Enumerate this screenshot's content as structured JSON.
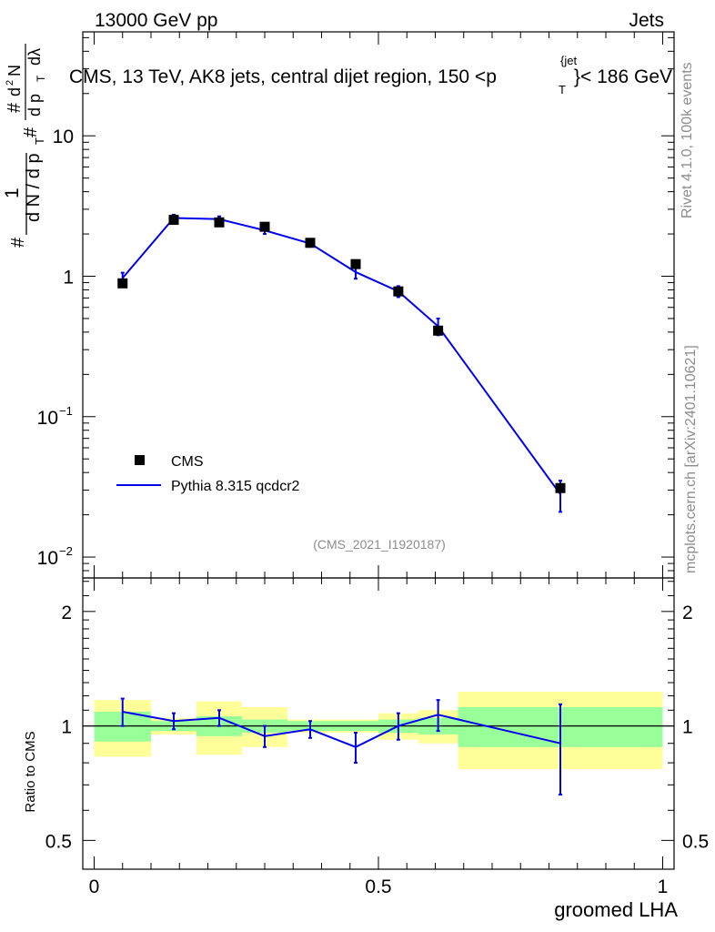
{
  "header": {
    "left": "13000 GeV pp",
    "right": "Jets"
  },
  "side_text": {
    "rivet": "Rivet 4.1.0,  100k events",
    "mcplots": "mcplots.cern.ch [arXiv:2401.10621]"
  },
  "chart_data": {
    "type": "line",
    "title": "CMS, 13 TeV, AK8 jets, central dijet region, 150 <p",
    "title_sup": "{jet",
    "title_sub": "T",
    "title_tail": "}< 186 GeV",
    "analysis_tag": "(CMS_2021_I1920187)",
    "xlabel": "groomed LHA",
    "ylabel_main": {
      "hash_left": "#",
      "one": "1",
      "den": "d N / d p",
      "den_sub": "T",
      "hash_mid": "#",
      "num_top": "d",
      "num_top_sup": "2",
      "num_top_N": "N",
      "num_dp": "d p",
      "num_dp_sub": "T",
      "num_dl": "dλ",
      "hash_top": "#"
    },
    "ylabel_ratio": "Ratio to CMS",
    "xlim": [
      -0.02,
      1.02
    ],
    "x_ticks": [
      {
        "value": 0,
        "label": "0"
      },
      {
        "value": 0.5,
        "label": "0.5"
      },
      {
        "value": 1,
        "label": "1"
      }
    ],
    "main_yscale": "log",
    "main_ylim": [
      0.0071,
      55
    ],
    "main_yticks": [
      {
        "value": 0.01,
        "base": "10",
        "exp": "−2"
      },
      {
        "value": 0.1,
        "base": "10",
        "exp": "−1"
      },
      {
        "value": 1,
        "base": "1",
        "exp": ""
      },
      {
        "value": 10,
        "base": "10",
        "exp": ""
      }
    ],
    "bins": [
      0.0,
      0.1,
      0.18,
      0.26,
      0.34,
      0.42,
      0.5,
      0.57,
      0.64,
      1.0
    ],
    "data": {
      "name": "CMS",
      "x": [
        0.05,
        0.14,
        0.22,
        0.3,
        0.38,
        0.46,
        0.535,
        0.605,
        0.82
      ],
      "y": [
        0.89,
        2.52,
        2.42,
        2.25,
        1.73,
        1.22,
        0.78,
        0.41,
        0.031
      ]
    },
    "mc": {
      "name": "Pythia 8.315 qcdcr2",
      "color": "#0000ee",
      "x": [
        0.05,
        0.14,
        0.22,
        0.3,
        0.38,
        0.46,
        0.535,
        0.605,
        0.82
      ],
      "y": [
        0.97,
        2.6,
        2.55,
        2.12,
        1.71,
        1.07,
        0.78,
        0.44,
        0.028
      ],
      "err": [
        0.09,
        0.14,
        0.12,
        0.12,
        0.09,
        0.11,
        0.07,
        0.06,
        0.007
      ]
    },
    "ratio_yscale": "log",
    "ratio_ylim": [
      0.42,
      2.45
    ],
    "ratio_yticks": [
      {
        "value": 0.5,
        "label": "0.5"
      },
      {
        "value": 1,
        "label": "1"
      },
      {
        "value": 2,
        "label": "2"
      }
    ],
    "ratio_mc": [
      1.09,
      1.03,
      1.05,
      0.94,
      0.98,
      0.88,
      1.0,
      1.07,
      0.9
    ],
    "ratio_mc_err": [
      0.09,
      0.05,
      0.05,
      0.06,
      0.05,
      0.08,
      0.08,
      0.1,
      0.24
    ],
    "band_green": [
      0.09,
      0.03,
      0.06,
      0.04,
      0.03,
      0.03,
      0.04,
      0.05,
      0.12
    ],
    "band_yellow": [
      0.17,
      0.05,
      0.16,
      0.12,
      0.04,
      0.04,
      0.08,
      0.1,
      0.23
    ],
    "legend_position": "lower-left",
    "colors": {
      "green_band": "#99ff99",
      "yellow_band": "#ffff99",
      "data_marker": "#000000"
    }
  }
}
